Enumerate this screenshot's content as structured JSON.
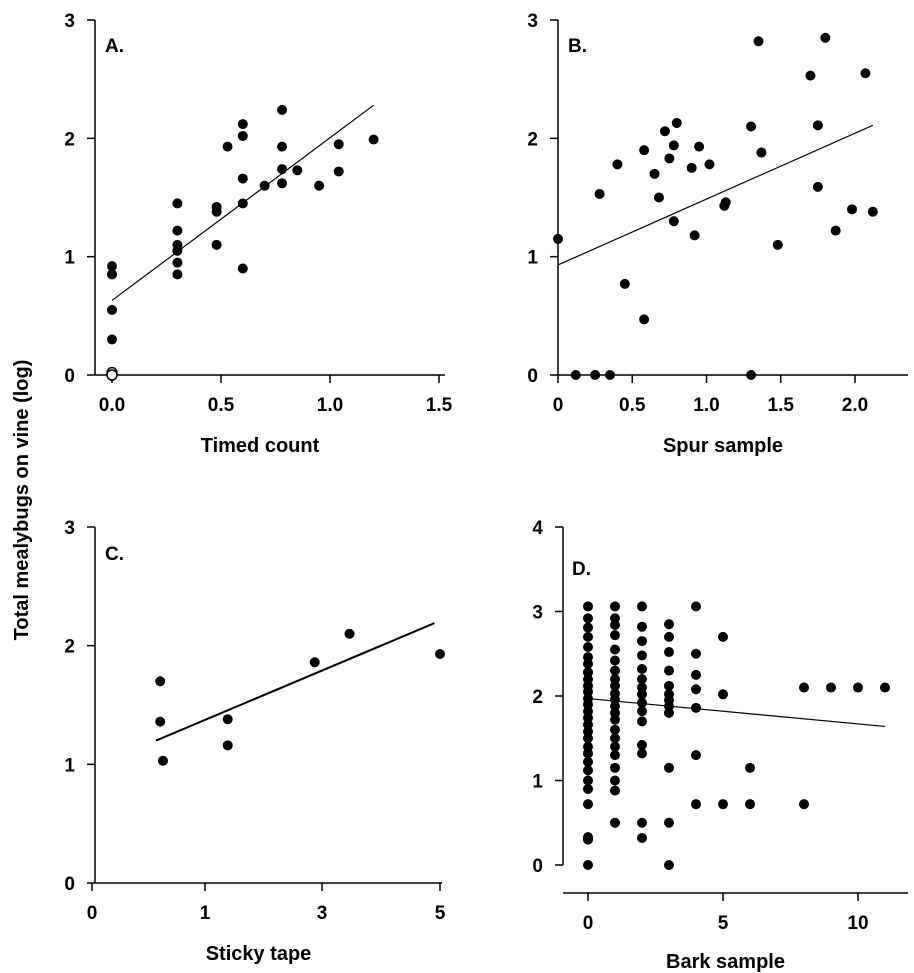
{
  "figure": {
    "ylabel": "Total mealybugs on vine (log)"
  },
  "chart_data": [
    {
      "type": "scatter",
      "panel": "A.",
      "xlabel": "Timed count",
      "ylabel": "Total mealybugs on vine (log)",
      "xlim": [
        -0.1,
        1.5
      ],
      "ylim": [
        0,
        3
      ],
      "xticks": [
        "0.0",
        "0.5",
        "1.0",
        "1.5"
      ],
      "yticks": [
        "0",
        "1",
        "2",
        "3"
      ],
      "series": [
        {
          "marker": "filled-circle",
          "points": [
            [
              0,
              0.92
            ],
            [
              0,
              0.85
            ],
            [
              0,
              0.55
            ],
            [
              0,
              0.3
            ],
            [
              0.3,
              1.45
            ],
            [
              0.3,
              1.22
            ],
            [
              0.3,
              1.1
            ],
            [
              0.3,
              1.05
            ],
            [
              0.3,
              0.95
            ],
            [
              0.3,
              0.85
            ],
            [
              0.48,
              1.42
            ],
            [
              0.48,
              1.38
            ],
            [
              0.48,
              1.1
            ],
            [
              0.53,
              1.93
            ],
            [
              0.6,
              2.12
            ],
            [
              0.6,
              2.02
            ],
            [
              0.6,
              1.66
            ],
            [
              0.6,
              1.45
            ],
            [
              0.6,
              0.9
            ],
            [
              0.7,
              1.6
            ],
            [
              0.78,
              2.24
            ],
            [
              0.78,
              1.93
            ],
            [
              0.78,
              1.74
            ],
            [
              0.78,
              1.62
            ],
            [
              0.85,
              1.73
            ],
            [
              0.95,
              1.6
            ],
            [
              1.04,
              1.95
            ],
            [
              1.04,
              1.72
            ],
            [
              1.2,
              1.99
            ]
          ]
        },
        {
          "marker": "open-circle",
          "points": [
            [
              0,
              0.02
            ],
            [
              0,
              0.0
            ]
          ]
        }
      ],
      "regression": {
        "x": [
          0,
          1.2
        ],
        "y": [
          0.63,
          2.28
        ]
      }
    },
    {
      "type": "scatter",
      "panel": "B.",
      "xlabel": "Spur sample",
      "ylabel": "",
      "xlim": [
        0,
        2.4
      ],
      "ylim": [
        0,
        3
      ],
      "xticks": [
        "0",
        "0.5",
        "1.0",
        "1.5",
        "2.0"
      ],
      "yticks": [
        "0",
        "1",
        "2",
        "3"
      ],
      "series": [
        {
          "marker": "filled-circle",
          "points": [
            [
              0,
              1.15
            ],
            [
              0.12,
              0
            ],
            [
              0.25,
              0
            ],
            [
              0.35,
              0
            ],
            [
              0.28,
              1.53
            ],
            [
              0.4,
              1.78
            ],
            [
              0.45,
              0.77
            ],
            [
              0.58,
              1.9
            ],
            [
              0.58,
              0.47
            ],
            [
              0.65,
              1.7
            ],
            [
              0.68,
              1.5
            ],
            [
              0.72,
              2.06
            ],
            [
              0.75,
              1.83
            ],
            [
              0.78,
              1.3
            ],
            [
              0.78,
              1.94
            ],
            [
              0.8,
              2.13
            ],
            [
              0.9,
              1.75
            ],
            [
              0.92,
              1.18
            ],
            [
              0.95,
              1.93
            ],
            [
              1.02,
              1.78
            ],
            [
              1.12,
              1.43
            ],
            [
              1.13,
              1.46
            ],
            [
              1.3,
              2.1
            ],
            [
              1.3,
              0
            ],
            [
              1.35,
              2.82
            ],
            [
              1.37,
              1.88
            ],
            [
              1.48,
              1.1
            ],
            [
              1.7,
              2.53
            ],
            [
              1.75,
              2.11
            ],
            [
              1.75,
              1.59
            ],
            [
              1.8,
              2.85
            ],
            [
              1.87,
              1.22
            ],
            [
              1.98,
              1.4
            ],
            [
              2.07,
              2.55
            ],
            [
              2.12,
              1.38
            ]
          ]
        }
      ],
      "regression": {
        "x": [
          0,
          2.12
        ],
        "y": [
          0.93,
          2.11
        ]
      }
    },
    {
      "type": "scatter",
      "panel": "C.",
      "xlabel": "Sticky tape",
      "ylabel": "",
      "xlim": [
        -0.1,
        5
      ],
      "ylim": [
        0,
        3
      ],
      "xticks": [
        "0",
        "1",
        "3",
        "5"
      ],
      "yticks": [
        "0",
        "1",
        "2",
        "3"
      ],
      "series": [
        {
          "marker": "filled-circle",
          "points": [
            [
              0.98,
              1.7
            ],
            [
              0.98,
              1.36
            ],
            [
              1.02,
              1.03
            ],
            [
              1.95,
              1.38
            ],
            [
              1.95,
              1.16
            ],
            [
              3.2,
              1.86
            ],
            [
              3.7,
              2.1
            ],
            [
              5.0,
              1.93
            ]
          ]
        }
      ],
      "regression": {
        "x": [
          0.92,
          4.92
        ],
        "y": [
          1.2,
          2.19
        ]
      }
    },
    {
      "type": "scatter",
      "panel": "D.",
      "xlabel": "Bark sample",
      "ylabel": "",
      "xlim": [
        -1,
        11.5
      ],
      "ylim": [
        0,
        4
      ],
      "xticks": [
        "0",
        "5",
        "10"
      ],
      "yticks": [
        "0",
        "1",
        "2",
        "3",
        "4"
      ],
      "series": [
        {
          "marker": "filled-circle",
          "points": [
            [
              0,
              3.06
            ],
            [
              0,
              2.92
            ],
            [
              0,
              2.81
            ],
            [
              0,
              2.7
            ],
            [
              0,
              2.58
            ],
            [
              0,
              2.46
            ],
            [
              0,
              2.38
            ],
            [
              0,
              2.28
            ],
            [
              0,
              2.2
            ],
            [
              0,
              2.12
            ],
            [
              0,
              2.05
            ],
            [
              0,
              1.97
            ],
            [
              0,
              1.9
            ],
            [
              0,
              1.82
            ],
            [
              0,
              1.74
            ],
            [
              0,
              1.66
            ],
            [
              0,
              1.58
            ],
            [
              0,
              1.5
            ],
            [
              0,
              1.4
            ],
            [
              0,
              1.32
            ],
            [
              0,
              1.22
            ],
            [
              0,
              1.12
            ],
            [
              0,
              1.0
            ],
            [
              0,
              0.9
            ],
            [
              0,
              0.72
            ],
            [
              0,
              0.33
            ],
            [
              0,
              0.3
            ],
            [
              0,
              0.0
            ],
            [
              1,
              3.06
            ],
            [
              1,
              2.92
            ],
            [
              1,
              2.84
            ],
            [
              1,
              2.72
            ],
            [
              1,
              2.55
            ],
            [
              1,
              2.42
            ],
            [
              1,
              2.3
            ],
            [
              1,
              2.2
            ],
            [
              1,
              2.12
            ],
            [
              1,
              2.03
            ],
            [
              1,
              1.96
            ],
            [
              1,
              1.88
            ],
            [
              1,
              1.8
            ],
            [
              1,
              1.72
            ],
            [
              1,
              1.6
            ],
            [
              1,
              1.5
            ],
            [
              1,
              1.4
            ],
            [
              1,
              1.3
            ],
            [
              1,
              1.15
            ],
            [
              1,
              1.0
            ],
            [
              1,
              0.88
            ],
            [
              1,
              0.5
            ],
            [
              2,
              3.06
            ],
            [
              2,
              2.82
            ],
            [
              2,
              2.65
            ],
            [
              2,
              2.48
            ],
            [
              2,
              2.32
            ],
            [
              2,
              2.2
            ],
            [
              2,
              2.1
            ],
            [
              2,
              2.02
            ],
            [
              2,
              1.92
            ],
            [
              2,
              1.82
            ],
            [
              2,
              1.7
            ],
            [
              2,
              1.42
            ],
            [
              2,
              1.32
            ],
            [
              2,
              0.5
            ],
            [
              2,
              0.32
            ],
            [
              3,
              2.85
            ],
            [
              3,
              2.7
            ],
            [
              3,
              2.52
            ],
            [
              3,
              2.3
            ],
            [
              3,
              2.12
            ],
            [
              3,
              2.02
            ],
            [
              3,
              1.95
            ],
            [
              3,
              1.88
            ],
            [
              3,
              1.8
            ],
            [
              3,
              1.15
            ],
            [
              3,
              0.5
            ],
            [
              3,
              0.0
            ],
            [
              4,
              3.06
            ],
            [
              4,
              2.5
            ],
            [
              4,
              2.25
            ],
            [
              4,
              2.08
            ],
            [
              4,
              1.86
            ],
            [
              4,
              1.3
            ],
            [
              4,
              0.72
            ],
            [
              5,
              2.7
            ],
            [
              5,
              2.02
            ],
            [
              5,
              0.72
            ],
            [
              6,
              1.15
            ],
            [
              6,
              0.72
            ],
            [
              8,
              2.1
            ],
            [
              8,
              0.72
            ],
            [
              9,
              2.1
            ],
            [
              10,
              2.1
            ],
            [
              11,
              2.1
            ]
          ]
        }
      ],
      "regression": {
        "x": [
          0,
          11
        ],
        "y": [
          1.97,
          1.64
        ]
      }
    }
  ]
}
